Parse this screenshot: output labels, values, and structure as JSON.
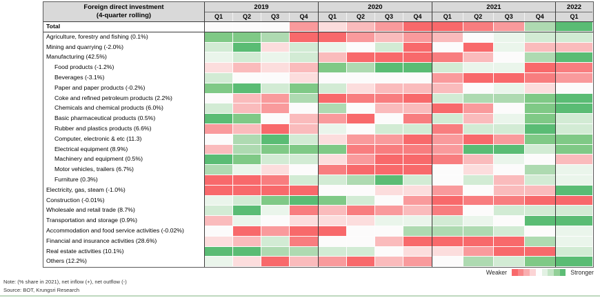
{
  "header": {
    "title_line1": "Foreign direct investment",
    "title_line2": "(4-quarter rolling)",
    "year_groups": [
      {
        "year": "2019",
        "quarters": [
          "Q1",
          "Q2",
          "Q3",
          "Q4"
        ]
      },
      {
        "year": "2020",
        "quarters": [
          "Q1",
          "Q2",
          "Q3",
          "Q4"
        ]
      },
      {
        "year": "2021",
        "quarters": [
          "Q1",
          "Q2",
          "Q3",
          "Q4"
        ]
      },
      {
        "year": "2022",
        "quarters": [
          "Q1"
        ]
      }
    ]
  },
  "palette": {
    "-4": "#F8696B",
    "-3": "#F87D7F",
    "-2": "#F99A9C",
    "-1": "#FABBBC",
    "-0.5": "#FCDDDD",
    "0": "#FCFBFB",
    "0.5": "#EAF5EB",
    "1": "#D2EBD4",
    "2": "#AEDAB1",
    "3": "#7FC986",
    "4": "#5ABC74"
  },
  "chart_data": {
    "type": "heatmap",
    "title": "Foreign direct investment (4-quarter rolling)",
    "x": [
      "2019 Q1",
      "2019 Q2",
      "2019 Q3",
      "2019 Q4",
      "2020 Q1",
      "2020 Q2",
      "2020 Q3",
      "2020 Q4",
      "2021 Q1",
      "2021 Q2",
      "2021 Q3",
      "2021 Q4",
      "2022 Q1"
    ],
    "scale_note": "values are color-scale strength levels read from the heatmap, -4 = weaker (strong red) to 4 = stronger (strong green)",
    "legend_position": "bottom-right",
    "rows": [
      {
        "label": "Total",
        "bold": true,
        "indent": false,
        "values": [
          0,
          0,
          0,
          -2,
          -0.5,
          -1,
          -2,
          -4,
          -4,
          -3,
          -2,
          2,
          4
        ]
      },
      {
        "label": "Agriculture, forestry and fishing (0.1%)",
        "bold": false,
        "indent": false,
        "values": [
          3,
          3,
          2,
          -4,
          -4,
          -2,
          -1,
          -2,
          -1,
          0,
          0.5,
          1,
          1
        ]
      },
      {
        "label": "Mining and quarrying (-2.0%)",
        "bold": false,
        "indent": false,
        "values": [
          1,
          4,
          -0.5,
          1,
          0.5,
          0,
          1,
          -4,
          0,
          -4,
          0.5,
          -1,
          -1
        ]
      },
      {
        "label": "Manufacturing (42.5%)",
        "bold": false,
        "indent": false,
        "values": [
          0.5,
          1,
          0.5,
          1,
          -1,
          -4,
          -4,
          -4,
          -3,
          -1,
          0,
          2,
          4
        ]
      },
      {
        "label": "Food products (-1.2%)",
        "bold": false,
        "indent": true,
        "values": [
          -0.5,
          -1,
          -0.5,
          -1,
          3,
          2,
          4,
          4,
          1,
          0.5,
          0.5,
          -4,
          -3
        ]
      },
      {
        "label": "Beverages (-3.1%)",
        "bold": false,
        "indent": true,
        "values": [
          1,
          0,
          0,
          -0.5,
          0,
          0,
          0,
          0,
          -2,
          -4,
          -4,
          -3,
          -2
        ]
      },
      {
        "label": "Paper and paper products (-0.2%)",
        "bold": false,
        "indent": true,
        "values": [
          3,
          4,
          1,
          3,
          1,
          -0.5,
          -1,
          -1,
          -1,
          0,
          0.5,
          -0.5,
          0
        ]
      },
      {
        "label": "Coke and refined petroleum products (2.2%)",
        "bold": false,
        "indent": true,
        "values": [
          0,
          -1,
          -2,
          2,
          -4,
          -3,
          -3,
          -4,
          1,
          2,
          2,
          3,
          4
        ]
      },
      {
        "label": "Chemicals and chemical products (6.0%)",
        "bold": false,
        "indent": true,
        "values": [
          1,
          -1,
          -2,
          0,
          2,
          0,
          -1,
          -1,
          -4,
          -2,
          0,
          3,
          4
        ]
      },
      {
        "label": "Basic pharmaceutical products (0.5%)",
        "bold": false,
        "indent": true,
        "values": [
          4,
          3,
          0,
          -1,
          -2,
          -4,
          0,
          -3,
          1,
          -1,
          0.5,
          3,
          1
        ]
      },
      {
        "label": "Rubber and plastics products (6.6%)",
        "bold": false,
        "indent": true,
        "values": [
          -2,
          -1,
          -4,
          -1,
          0.5,
          0,
          1,
          1,
          -3,
          1,
          1,
          4,
          1
        ]
      },
      {
        "label": "Computer, electronic & etc (11.3)",
        "bold": false,
        "indent": true,
        "values": [
          0,
          2,
          4,
          1,
          -0.5,
          -2,
          -2,
          -4,
          -2,
          -4,
          -2,
          3,
          3
        ]
      },
      {
        "label": "Electrical equipment (8.9%)",
        "bold": false,
        "indent": true,
        "values": [
          -1,
          2,
          3,
          3,
          3,
          -3,
          -3,
          -3,
          -2,
          4,
          4,
          1,
          3
        ]
      },
      {
        "label": "Machinery and equipment (0.5%)",
        "bold": false,
        "indent": true,
        "values": [
          4,
          3,
          1,
          1,
          -0.5,
          -2,
          -4,
          -4,
          -3,
          -1,
          0.5,
          0,
          -1
        ]
      },
      {
        "label": "Motor vehicles, trailers (6.7%)",
        "bold": false,
        "indent": true,
        "values": [
          2,
          0.5,
          -0.5,
          0,
          -3,
          -4,
          -4,
          -4,
          0,
          -0.5,
          0,
          2,
          0.5
        ]
      },
      {
        "label": "Furniture (0.3%)",
        "bold": false,
        "indent": true,
        "values": [
          -4,
          -4,
          -3,
          1,
          1,
          2,
          4,
          1,
          0,
          1,
          -1,
          1,
          0.5
        ]
      },
      {
        "label": "Electricity, gas, steam (-1.0%)",
        "bold": false,
        "indent": false,
        "values": [
          -4,
          -4,
          -4,
          -4,
          0,
          0,
          -0.5,
          -0.5,
          -2,
          0,
          -1,
          -1,
          4
        ]
      },
      {
        "label": "Construction (-0.01%)",
        "bold": false,
        "indent": false,
        "values": [
          0.5,
          1,
          3,
          4,
          3,
          1,
          0,
          -2,
          -4,
          -3,
          -3,
          -4,
          -4
        ]
      },
      {
        "label": "Wholesale and retail trade (8.7%)",
        "bold": false,
        "indent": false,
        "values": [
          1,
          4,
          0.5,
          -3,
          -1,
          -3,
          -2,
          -1,
          -3,
          0,
          1,
          1,
          1
        ]
      },
      {
        "label": "Transportation and storage (0.9%)",
        "bold": false,
        "indent": false,
        "values": [
          -1,
          0.5,
          0,
          -0.5,
          -0.5,
          -0.5,
          0.5,
          0.5,
          1,
          0.5,
          0,
          4,
          4
        ]
      },
      {
        "label": "Accommodation and food service activities (-0.02%)",
        "bold": false,
        "indent": false,
        "values": [
          0,
          -4,
          -2,
          -4,
          -4,
          0,
          0,
          2,
          2,
          2,
          1,
          0,
          0.5
        ]
      },
      {
        "label": "Financial and insurance activities (28.6%)",
        "bold": false,
        "indent": false,
        "values": [
          -0.5,
          -1,
          1,
          -3,
          0,
          0,
          -1,
          -4,
          -4,
          -4,
          -4,
          2,
          0.5
        ]
      },
      {
        "label": "Real estate activities (10.1%)",
        "bold": false,
        "indent": false,
        "values": [
          4,
          4,
          2,
          2,
          1,
          1,
          0,
          -0.5,
          -0.5,
          -2,
          -4,
          -4,
          1
        ]
      },
      {
        "label": "Others (12.2%)",
        "bold": false,
        "indent": false,
        "values": [
          0.5,
          -0.5,
          -4,
          -1,
          -2,
          -4,
          -1,
          -2,
          0,
          2,
          1,
          3,
          4
        ]
      }
    ]
  },
  "legend": {
    "weaker_label": "Weaker",
    "stronger_label": "Stronger",
    "swatches": [
      "#F8696B",
      "#F8888A",
      "#F9AEB0",
      "#FBD4D5",
      "#FDFDFD",
      "#E2F1E3",
      "#C3E4C5",
      "#93D098",
      "#5DBD76"
    ]
  },
  "footer": {
    "note": "Note: (% share in 2021), net inflow (+), net outflow (-)",
    "source": "Source: BOT, Krungsri Research"
  }
}
